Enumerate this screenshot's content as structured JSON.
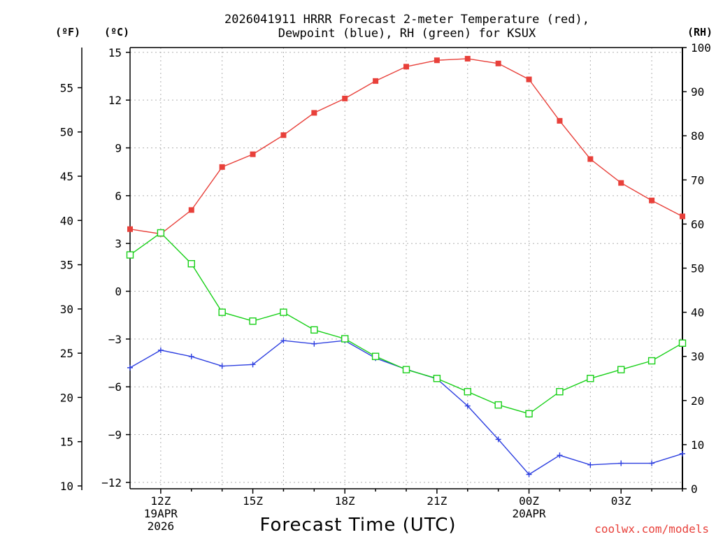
{
  "chart_data": {
    "type": "line",
    "title_line1": "2026041911 HRRR Forecast 2-meter Temperature (red),",
    "title_line2": "Dewpoint (blue), RH (green) for KSUX",
    "xlabel": "Forecast Time (UTC)",
    "credit": "coolwx.com/models",
    "unit_f": "(ºF)",
    "unit_c": "(ºC)",
    "unit_rh": "(RH)",
    "x_hours": [
      11,
      12,
      13,
      14,
      15,
      16,
      17,
      18,
      19,
      20,
      21,
      22,
      23,
      24,
      25,
      26,
      27,
      28,
      29
    ],
    "xlim": [
      11,
      29
    ],
    "x_ticks": [
      {
        "hour": 12,
        "lines": [
          "12Z",
          "19APR",
          "2026"
        ]
      },
      {
        "hour": 15,
        "lines": [
          "15Z"
        ]
      },
      {
        "hour": 18,
        "lines": [
          "18Z"
        ]
      },
      {
        "hour": 21,
        "lines": [
          "21Z"
        ]
      },
      {
        "hour": 24,
        "lines": [
          "00Z",
          "20APR"
        ]
      },
      {
        "hour": 27,
        "lines": [
          "03Z"
        ]
      }
    ],
    "celsius_axis": {
      "ylim": [
        -12.4,
        15.3
      ],
      "ticks": [
        15,
        12,
        9,
        6,
        3,
        0,
        -3,
        -6,
        -9,
        -12
      ],
      "labels": [
        "15",
        "12",
        "9",
        "6",
        "3",
        "0",
        "−3",
        "−6",
        "−9",
        "−12"
      ]
    },
    "fahrenheit_axis": {
      "ticks": [
        55,
        50,
        45,
        40,
        35,
        30,
        25,
        20,
        15,
        10
      ]
    },
    "rh_axis": {
      "ylim": [
        0,
        100
      ],
      "ticks": [
        100,
        90,
        80,
        70,
        60,
        50,
        40,
        30,
        20,
        10,
        0
      ]
    },
    "series": [
      {
        "name": "Temperature",
        "units": "C",
        "axis": "left",
        "color": "#e8403a",
        "marker": "filled-square",
        "values": [
          3.9,
          3.6,
          5.1,
          7.8,
          8.6,
          9.8,
          11.2,
          12.1,
          13.2,
          14.1,
          14.5,
          14.6,
          14.3,
          13.3,
          10.7,
          8.3,
          6.8,
          5.7,
          4.7
        ]
      },
      {
        "name": "Dewpoint",
        "units": "C",
        "axis": "left",
        "color": "#2d3fe0",
        "marker": "plus",
        "values": [
          -4.8,
          -3.7,
          -4.1,
          -4.7,
          -4.6,
          -3.1,
          -3.3,
          -3.1,
          -4.2,
          -4.9,
          -5.5,
          -7.2,
          -9.3,
          -11.5,
          -10.3,
          -10.9,
          -10.8,
          -10.8,
          -10.2
        ]
      },
      {
        "name": "RH",
        "units": "%",
        "axis": "right",
        "color": "#18d018",
        "marker": "open-square",
        "values": [
          53,
          58,
          51,
          40,
          38,
          40,
          36,
          34,
          30,
          27,
          25,
          22,
          19,
          17,
          22,
          25,
          27,
          29,
          33
        ]
      }
    ]
  }
}
